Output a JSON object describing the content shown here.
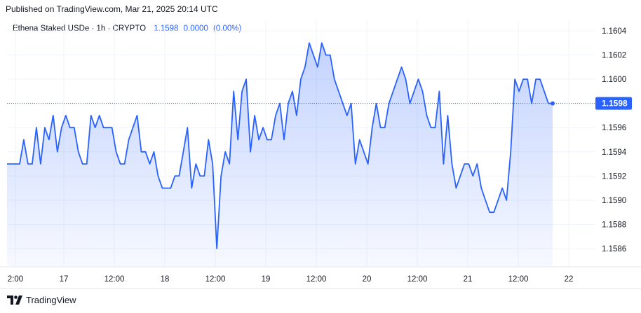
{
  "header": {
    "published": "Published on TradingView.com, Mar 21, 2025 20:14 UTC"
  },
  "legend": {
    "symbol": "Ethena Staked USDe · 1h · CRYPTO",
    "price": "1.1598",
    "change": "0.0000",
    "change_pct": "(0.00%)"
  },
  "footer": {
    "brand": "TradingView"
  },
  "colors": {
    "line": "#2962ff",
    "last_label_bg": "#2962ff"
  },
  "chart_data": {
    "type": "area",
    "ylim": [
      1.1585,
      1.1605
    ],
    "y_ticks": [
      "1.1586",
      "1.1588",
      "1.1590",
      "1.1592",
      "1.1594",
      "1.1596",
      "1.1598",
      "1.1600",
      "1.1602",
      "1.1604"
    ],
    "x_ticks": [
      "2:00",
      "17",
      "12:00",
      "18",
      "12:00",
      "19",
      "12:00",
      "20",
      "12:00",
      "21",
      "12:00",
      "22"
    ],
    "last_value_label": "1.1598",
    "series": [
      {
        "values": [
          1.1593,
          1.1593,
          1.1593,
          1.1593,
          1.1595,
          1.1593,
          1.1593,
          1.1596,
          1.1593,
          1.1596,
          1.1595,
          1.1597,
          1.1594,
          1.1596,
          1.1597,
          1.1596,
          1.1596,
          1.1594,
          1.1593,
          1.1593,
          1.1597,
          1.1596,
          1.1597,
          1.1596,
          1.1596,
          1.1596,
          1.1594,
          1.1593,
          1.1593,
          1.1595,
          1.1596,
          1.1597,
          1.1594,
          1.1594,
          1.1593,
          1.1594,
          1.1592,
          1.1591,
          1.1591,
          1.1591,
          1.1592,
          1.1592,
          1.1594,
          1.1596,
          1.1591,
          1.1593,
          1.1592,
          1.1592,
          1.1595,
          1.1593,
          1.1586,
          1.1592,
          1.1594,
          1.1593,
          1.1599,
          1.1595,
          1.1599,
          1.16,
          1.1594,
          1.1597,
          1.1595,
          1.1596,
          1.1595,
          1.1595,
          1.1597,
          1.1598,
          1.1595,
          1.1598,
          1.1599,
          1.1597,
          1.16,
          1.1601,
          1.1603,
          1.1602,
          1.1601,
          1.1603,
          1.1602,
          1.1602,
          1.16,
          1.1599,
          1.1598,
          1.1597,
          1.1598,
          1.1593,
          1.1595,
          1.1594,
          1.1593,
          1.1596,
          1.1598,
          1.1596,
          1.1596,
          1.1598,
          1.1599,
          1.16,
          1.1601,
          1.16,
          1.1598,
          1.1599,
          1.16,
          1.1599,
          1.1597,
          1.1596,
          1.1596,
          1.1599,
          1.1593,
          1.1597,
          1.1593,
          1.1591,
          1.1592,
          1.1593,
          1.1593,
          1.1592,
          1.1593,
          1.1591,
          1.159,
          1.1589,
          1.1589,
          1.159,
          1.1591,
          1.159,
          1.1594,
          1.16,
          1.1599,
          1.16,
          1.16,
          1.1598,
          1.16,
          1.16,
          1.1599,
          1.1598,
          1.1598
        ]
      }
    ]
  }
}
